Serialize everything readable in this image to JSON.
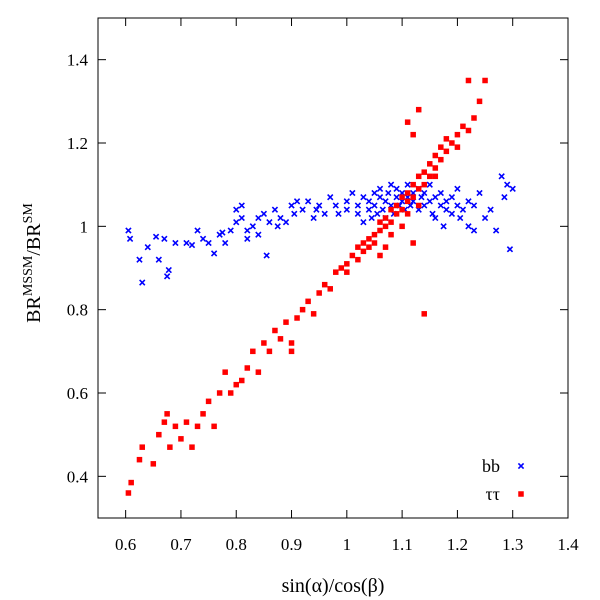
{
  "chart_data": {
    "type": "scatter",
    "xlabel": "sin(α)/cos(β)",
    "ylabel": "BR^MSSM/BR^SM",
    "ylabel_parts": {
      "a": "BR",
      "a_sup": "MSSM",
      "slash": "/",
      "b": "BR",
      "b_sup": "SM"
    },
    "xlim": [
      0.55,
      1.4
    ],
    "ylim": [
      0.3,
      1.5
    ],
    "xticks": [
      0.6,
      0.7,
      0.8,
      0.9,
      1,
      1.1,
      1.2,
      1.3,
      1.4
    ],
    "xtick_labels": [
      "0.6",
      "0.7",
      "0.8",
      "0.9",
      "1",
      "1.1",
      "1.2",
      "1.3",
      "1.4"
    ],
    "yticks": [
      0.4,
      0.6,
      0.8,
      1,
      1.2,
      1.4
    ],
    "ytick_labels": [
      "0.4",
      "0.6",
      "0.8",
      "1",
      "1.2",
      "1.4"
    ],
    "legend_position": "bottom-right",
    "grid": false,
    "series": [
      {
        "name": "bb",
        "marker": "x",
        "color": "#0000ff",
        "points": [
          [
            0.605,
            0.99
          ],
          [
            0.608,
            0.97
          ],
          [
            0.625,
            0.92
          ],
          [
            0.63,
            0.865
          ],
          [
            0.64,
            0.95
          ],
          [
            0.655,
            0.975
          ],
          [
            0.66,
            0.92
          ],
          [
            0.67,
            0.97
          ],
          [
            0.675,
            0.88
          ],
          [
            0.678,
            0.895
          ],
          [
            0.69,
            0.96
          ],
          [
            0.71,
            0.96
          ],
          [
            0.72,
            0.955
          ],
          [
            0.73,
            0.99
          ],
          [
            0.74,
            0.97
          ],
          [
            0.75,
            0.96
          ],
          [
            0.76,
            0.935
          ],
          [
            0.77,
            0.98
          ],
          [
            0.775,
            0.985
          ],
          [
            0.78,
            0.96
          ],
          [
            0.79,
            0.99
          ],
          [
            0.8,
            1.04
          ],
          [
            0.8,
            1.01
          ],
          [
            0.81,
            1.02
          ],
          [
            0.81,
            1.05
          ],
          [
            0.82,
            0.97
          ],
          [
            0.82,
            0.99
          ],
          [
            0.83,
            1.0
          ],
          [
            0.84,
            1.02
          ],
          [
            0.84,
            0.98
          ],
          [
            0.85,
            1.03
          ],
          [
            0.855,
            0.93
          ],
          [
            0.86,
            1.01
          ],
          [
            0.87,
            1.04
          ],
          [
            0.875,
            1.0
          ],
          [
            0.88,
            1.02
          ],
          [
            0.89,
            1.01
          ],
          [
            0.9,
            1.05
          ],
          [
            0.905,
            1.03
          ],
          [
            0.91,
            1.06
          ],
          [
            0.92,
            1.04
          ],
          [
            0.93,
            1.06
          ],
          [
            0.94,
            1.02
          ],
          [
            0.945,
            1.04
          ],
          [
            0.95,
            1.05
          ],
          [
            0.96,
            1.03
          ],
          [
            0.97,
            1.07
          ],
          [
            0.98,
            1.05
          ],
          [
            0.985,
            1.03
          ],
          [
            1.0,
            1.04
          ],
          [
            1.0,
            1.06
          ],
          [
            1.01,
            1.08
          ],
          [
            1.02,
            1.05
          ],
          [
            1.02,
            1.03
          ],
          [
            1.03,
            1.07
          ],
          [
            1.03,
            1.01
          ],
          [
            1.04,
            1.06
          ],
          [
            1.04,
            1.04
          ],
          [
            1.045,
            1.02
          ],
          [
            1.05,
            1.08
          ],
          [
            1.05,
            1.05
          ],
          [
            1.055,
            1.03
          ],
          [
            1.06,
            1.07
          ],
          [
            1.06,
            1.09
          ],
          [
            1.065,
            1.04
          ],
          [
            1.07,
            1.06
          ],
          [
            1.07,
            1.02
          ],
          [
            1.075,
            1.08
          ],
          [
            1.08,
            1.05
          ],
          [
            1.08,
            1.1
          ],
          [
            1.085,
            1.03
          ],
          [
            1.09,
            1.07
          ],
          [
            1.09,
            1.09
          ],
          [
            1.095,
            1.05
          ],
          [
            1.1,
            1.06
          ],
          [
            1.1,
            1.08
          ],
          [
            1.105,
            1.04
          ],
          [
            1.11,
            1.07
          ],
          [
            1.11,
            1.1
          ],
          [
            1.115,
            1.05
          ],
          [
            1.12,
            1.08
          ],
          [
            1.12,
            1.06
          ],
          [
            1.13,
            1.09
          ],
          [
            1.13,
            1.04
          ],
          [
            1.135,
            1.07
          ],
          [
            1.14,
            1.05
          ],
          [
            1.14,
            1.08
          ],
          [
            1.15,
            1.06
          ],
          [
            1.15,
            1.1
          ],
          [
            1.155,
            1.03
          ],
          [
            1.16,
            1.07
          ],
          [
            1.16,
            1.02
          ],
          [
            1.17,
            1.05
          ],
          [
            1.17,
            1.08
          ],
          [
            1.175,
            1.0
          ],
          [
            1.18,
            1.06
          ],
          [
            1.18,
            1.04
          ],
          [
            1.19,
            1.07
          ],
          [
            1.19,
            1.03
          ],
          [
            1.2,
            1.05
          ],
          [
            1.2,
            1.09
          ],
          [
            1.205,
            1.02
          ],
          [
            1.21,
            1.04
          ],
          [
            1.22,
            1.06
          ],
          [
            1.22,
            1.0
          ],
          [
            1.23,
            1.05
          ],
          [
            1.23,
            0.99
          ],
          [
            1.24,
            1.08
          ],
          [
            1.25,
            1.02
          ],
          [
            1.26,
            1.04
          ],
          [
            1.27,
            0.99
          ],
          [
            1.28,
            1.12
          ],
          [
            1.29,
            1.1
          ],
          [
            1.3,
            1.09
          ],
          [
            1.295,
            0.945
          ],
          [
            1.285,
            1.07
          ]
        ]
      },
      {
        "name": "ττ",
        "marker": "square",
        "color": "#ff0000",
        "points": [
          [
            0.605,
            0.36
          ],
          [
            0.61,
            0.385
          ],
          [
            0.625,
            0.44
          ],
          [
            0.63,
            0.47
          ],
          [
            0.65,
            0.43
          ],
          [
            0.66,
            0.5
          ],
          [
            0.67,
            0.53
          ],
          [
            0.675,
            0.55
          ],
          [
            0.68,
            0.47
          ],
          [
            0.69,
            0.52
          ],
          [
            0.7,
            0.49
          ],
          [
            0.71,
            0.53
          ],
          [
            0.72,
            0.47
          ],
          [
            0.73,
            0.52
          ],
          [
            0.74,
            0.55
          ],
          [
            0.75,
            0.58
          ],
          [
            0.76,
            0.52
          ],
          [
            0.77,
            0.6
          ],
          [
            0.78,
            0.65
          ],
          [
            0.79,
            0.6
          ],
          [
            0.8,
            0.62
          ],
          [
            0.81,
            0.63
          ],
          [
            0.82,
            0.66
          ],
          [
            0.83,
            0.7
          ],
          [
            0.84,
            0.65
          ],
          [
            0.85,
            0.72
          ],
          [
            0.86,
            0.7
          ],
          [
            0.87,
            0.75
          ],
          [
            0.88,
            0.73
          ],
          [
            0.89,
            0.77
          ],
          [
            0.9,
            0.72
          ],
          [
            0.9,
            0.7
          ],
          [
            0.91,
            0.78
          ],
          [
            0.92,
            0.8
          ],
          [
            0.93,
            0.82
          ],
          [
            0.94,
            0.79
          ],
          [
            0.95,
            0.84
          ],
          [
            0.96,
            0.86
          ],
          [
            0.97,
            0.85
          ],
          [
            0.98,
            0.89
          ],
          [
            0.99,
            0.9
          ],
          [
            1.0,
            0.91
          ],
          [
            1.0,
            0.89
          ],
          [
            1.01,
            0.93
          ],
          [
            1.02,
            0.92
          ],
          [
            1.02,
            0.95
          ],
          [
            1.03,
            0.94
          ],
          [
            1.03,
            0.96
          ],
          [
            1.04,
            0.97
          ],
          [
            1.04,
            0.95
          ],
          [
            1.05,
            0.98
          ],
          [
            1.05,
            0.96
          ],
          [
            1.06,
            0.99
          ],
          [
            1.06,
            1.01
          ],
          [
            1.07,
            1.0
          ],
          [
            1.07,
            1.02
          ],
          [
            1.08,
            1.01
          ],
          [
            1.08,
            1.04
          ],
          [
            1.09,
            1.03
          ],
          [
            1.09,
            1.05
          ],
          [
            1.1,
            1.04
          ],
          [
            1.1,
            1.07
          ],
          [
            1.11,
            1.06
          ],
          [
            1.11,
            1.08
          ],
          [
            1.12,
            1.07
          ],
          [
            1.12,
            1.1
          ],
          [
            1.13,
            1.09
          ],
          [
            1.13,
            1.12
          ],
          [
            1.14,
            1.1
          ],
          [
            1.14,
            1.13
          ],
          [
            1.15,
            1.12
          ],
          [
            1.15,
            1.15
          ],
          [
            1.16,
            1.14
          ],
          [
            1.16,
            1.17
          ],
          [
            1.17,
            1.16
          ],
          [
            1.17,
            1.19
          ],
          [
            1.18,
            1.18
          ],
          [
            1.18,
            1.21
          ],
          [
            1.19,
            1.2
          ],
          [
            1.2,
            1.22
          ],
          [
            1.2,
            1.19
          ],
          [
            1.21,
            1.24
          ],
          [
            1.22,
            1.23
          ],
          [
            1.23,
            1.26
          ],
          [
            1.24,
            1.3
          ],
          [
            1.25,
            1.35
          ],
          [
            1.22,
            1.35
          ],
          [
            1.16,
            1.12
          ],
          [
            1.14,
            0.79
          ],
          [
            1.12,
            0.96
          ],
          [
            1.06,
            0.93
          ],
          [
            1.08,
            0.98
          ],
          [
            1.1,
            1.0
          ],
          [
            1.13,
            1.05
          ],
          [
            1.11,
            1.03
          ],
          [
            1.07,
            0.95
          ],
          [
            1.12,
            1.22
          ],
          [
            1.11,
            1.25
          ],
          [
            1.13,
            1.28
          ]
        ]
      }
    ]
  }
}
